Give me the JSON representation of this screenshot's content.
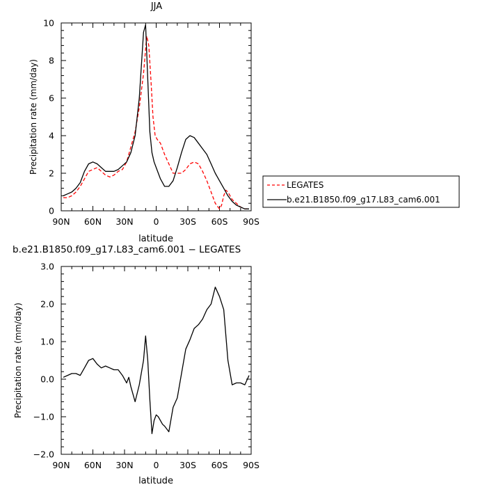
{
  "chart_data": [
    {
      "type": "line",
      "title": "JJA",
      "xlabel": "latitude",
      "ylabel": "Precipitation rate (mm/day)",
      "xlim": [
        90,
        -90
      ],
      "ylim": [
        0,
        10
      ],
      "x_ticks": [
        90,
        60,
        30,
        0,
        -30,
        -60,
        -90
      ],
      "x_tick_labels": [
        "90N",
        "60N",
        "30N",
        "0",
        "30S",
        "60S",
        "90S"
      ],
      "y_ticks": [
        0,
        2,
        4,
        6,
        8,
        10
      ],
      "y_tick_labels": [
        "0",
        "2",
        "4",
        "6",
        "8",
        "10"
      ],
      "legend_position": "outside-right",
      "series": [
        {
          "name": "LEGATES",
          "color": "#ff0000",
          "dash": "dashed",
          "x": [
            88,
            84,
            80,
            76,
            72,
            68,
            64,
            60,
            56,
            52,
            48,
            44,
            40,
            36,
            32,
            28,
            24,
            20,
            16,
            12,
            9,
            7,
            5,
            3,
            1,
            -1,
            -4,
            -8,
            -12,
            -16,
            -20,
            -24,
            -28,
            -32,
            -36,
            -40,
            -44,
            -48,
            -52,
            -56,
            -60,
            -62,
            -64,
            -66,
            -68,
            -70,
            -72,
            -76,
            -80,
            -84,
            -88
          ],
          "y": [
            0.7,
            0.7,
            0.8,
            1.0,
            1.3,
            1.7,
            2.1,
            2.2,
            2.3,
            2.1,
            1.9,
            1.8,
            1.9,
            2.1,
            2.2,
            2.6,
            3.4,
            4.2,
            5.5,
            7.3,
            9.3,
            8.8,
            7.0,
            5.0,
            4.0,
            3.8,
            3.6,
            3.0,
            2.5,
            2.0,
            2.0,
            2.0,
            2.2,
            2.5,
            2.6,
            2.5,
            2.1,
            1.6,
            1.0,
            0.4,
            0.1,
            0.3,
            0.8,
            1.1,
            1.0,
            0.8,
            0.6,
            0.4,
            0.2,
            0.1,
            0.1
          ]
        },
        {
          "name": "b.e21.B1850.f09_g17.L83_cam6.001",
          "color": "#000000",
          "dash": "solid",
          "x": [
            88,
            84,
            80,
            76,
            72,
            68,
            64,
            60,
            56,
            52,
            48,
            44,
            40,
            36,
            32,
            28,
            24,
            20,
            16,
            12,
            10,
            8,
            6,
            4,
            2,
            0,
            -4,
            -8,
            -12,
            -16,
            -20,
            -24,
            -28,
            -32,
            -36,
            -40,
            -44,
            -48,
            -52,
            -56,
            -60,
            -64,
            -68,
            -72,
            -76,
            -80,
            -84,
            -88
          ],
          "y": [
            0.8,
            0.9,
            1.0,
            1.2,
            1.5,
            2.1,
            2.5,
            2.6,
            2.5,
            2.3,
            2.1,
            2.1,
            2.1,
            2.2,
            2.4,
            2.6,
            3.1,
            4.0,
            6.0,
            9.5,
            9.9,
            7.0,
            4.2,
            3.1,
            2.6,
            2.3,
            1.7,
            1.3,
            1.3,
            1.6,
            2.3,
            3.1,
            3.8,
            4.0,
            3.9,
            3.6,
            3.3,
            3.0,
            2.5,
            2.0,
            1.6,
            1.2,
            0.8,
            0.5,
            0.3,
            0.2,
            0.1,
            0.1
          ]
        }
      ]
    },
    {
      "type": "line",
      "title": "b.e21.B1850.f09_g17.L83_cam6.001 − LEGATES",
      "xlabel": "latitude",
      "ylabel": "Precipitation rate (mm/day)",
      "xlim": [
        90,
        -90
      ],
      "ylim": [
        -2.0,
        3.0
      ],
      "x_ticks": [
        90,
        60,
        30,
        0,
        -30,
        -60,
        -90
      ],
      "x_tick_labels": [
        "90N",
        "60N",
        "30N",
        "0",
        "30S",
        "60S",
        "90S"
      ],
      "y_ticks": [
        -2.0,
        -1.0,
        0.0,
        1.0,
        2.0,
        3.0
      ],
      "y_tick_labels": [
        "−2.0",
        "−1.0",
        "0.0",
        "1.0",
        "2.0",
        "3.0"
      ],
      "series": [
        {
          "color": "#000000",
          "dash": "solid",
          "x": [
            88,
            84,
            80,
            76,
            72,
            68,
            64,
            60,
            56,
            52,
            48,
            44,
            40,
            36,
            32,
            28,
            26,
            24,
            20,
            16,
            12,
            10,
            8,
            6,
            4,
            2,
            0,
            -2,
            -6,
            -8,
            -12,
            -16,
            -20,
            -24,
            -28,
            -32,
            -36,
            -40,
            -44,
            -48,
            -52,
            -56,
            -60,
            -64,
            -68,
            -72,
            -76,
            -80,
            -84,
            -88
          ],
          "y": [
            0.05,
            0.1,
            0.15,
            0.15,
            0.1,
            0.3,
            0.5,
            0.55,
            0.4,
            0.3,
            0.35,
            0.3,
            0.25,
            0.25,
            0.1,
            -0.1,
            0.05,
            -0.2,
            -0.6,
            -0.15,
            0.5,
            1.15,
            0.5,
            -0.55,
            -1.45,
            -1.1,
            -0.95,
            -1.0,
            -1.2,
            -1.25,
            -1.4,
            -0.75,
            -0.5,
            0.15,
            0.8,
            1.05,
            1.35,
            1.45,
            1.6,
            1.85,
            2.0,
            2.45,
            2.2,
            1.85,
            0.5,
            -0.15,
            -0.1,
            -0.1,
            -0.15,
            0.1
          ]
        }
      ]
    }
  ]
}
